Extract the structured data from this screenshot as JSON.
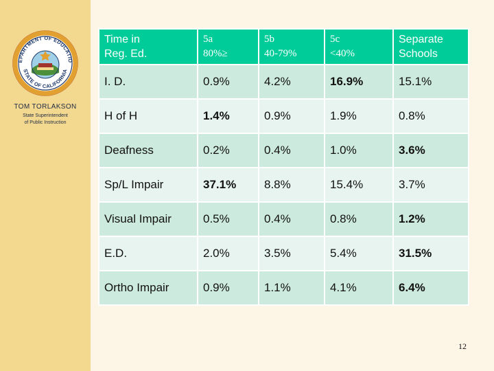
{
  "sidebar": {
    "seal_ring_top": "DEPARTMENT OF EDUCATION",
    "seal_ring_bottom": "STATE OF CALIFORNIA",
    "name": "TOM TORLAKSON",
    "title_line1": "State Superintendent",
    "title_line2": "of Public Instruction"
  },
  "table": {
    "headers": [
      {
        "line1": "Time in",
        "line2": "Reg. Ed."
      },
      {
        "line1": "5a",
        "line2": "80%≥"
      },
      {
        "line1": "5b",
        "line2": "40-79%"
      },
      {
        "line1": "5c",
        "line2": "<40%"
      },
      {
        "line1": "Separate",
        "line2": "Schools"
      }
    ],
    "rows": [
      {
        "label": "I. D.",
        "values": [
          "0.9%",
          "4.2%",
          "16.9%",
          "15.1%"
        ],
        "bold": [
          false,
          false,
          true,
          false
        ]
      },
      {
        "label": "H of H",
        "values": [
          "1.4%",
          "0.9%",
          "1.9%",
          "0.8%"
        ],
        "bold": [
          true,
          false,
          false,
          false
        ]
      },
      {
        "label": "Deafness",
        "values": [
          "0.2%",
          "0.4%",
          "1.0%",
          "3.6%"
        ],
        "bold": [
          false,
          false,
          false,
          true
        ]
      },
      {
        "label": "Sp/L Impair",
        "values": [
          "37.1%",
          "8.8%",
          "15.4%",
          "3.7%"
        ],
        "bold": [
          true,
          false,
          false,
          false
        ]
      },
      {
        "label": "Visual Impair",
        "values": [
          "0.5%",
          "0.4%",
          "0.8%",
          "1.2%"
        ],
        "bold": [
          false,
          false,
          false,
          true
        ]
      },
      {
        "label": "E.D.",
        "values": [
          "2.0%",
          "3.5%",
          "5.4%",
          "31.5%"
        ],
        "bold": [
          false,
          false,
          false,
          true
        ]
      },
      {
        "label": "Ortho Impair",
        "values": [
          "0.9%",
          "1.1%",
          "4.1%",
          "6.4%"
        ],
        "bold": [
          false,
          false,
          false,
          true
        ]
      }
    ]
  },
  "page_number": "12",
  "colors": {
    "sidebar": "#f3d88f",
    "header": "#00cc99",
    "row_dark": "#cdeadf",
    "row_light": "#e7f4ef"
  }
}
